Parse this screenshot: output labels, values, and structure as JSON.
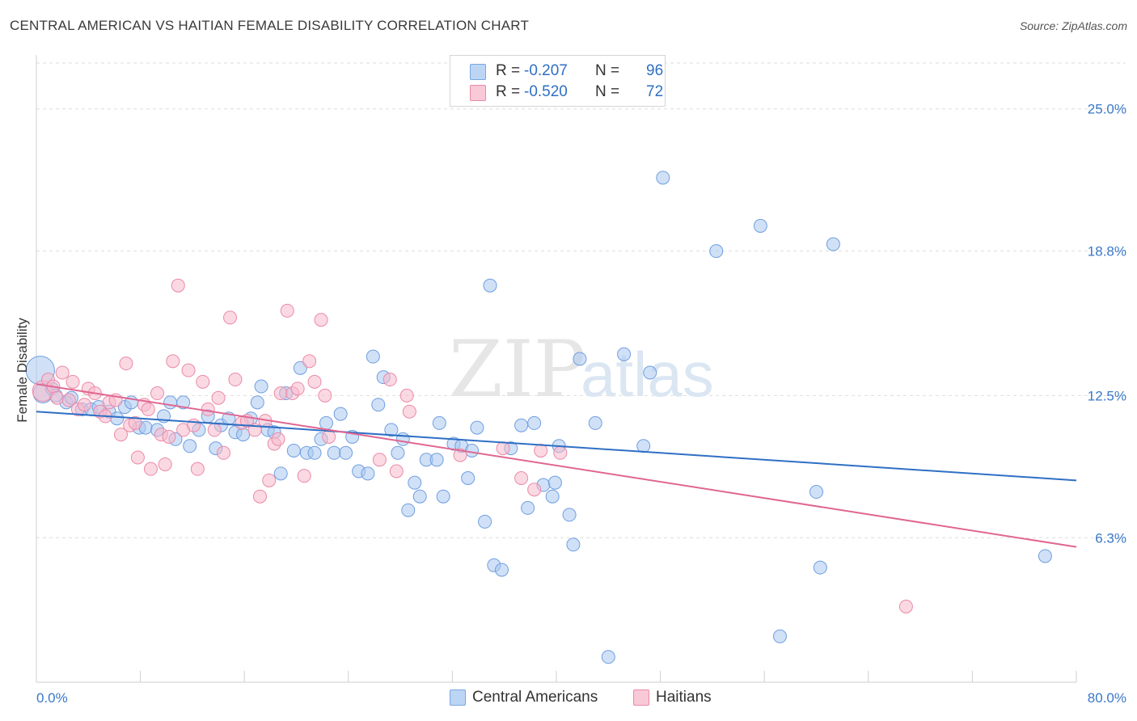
{
  "header": {
    "title": "CENTRAL AMERICAN VS HAITIAN FEMALE DISABILITY CORRELATION CHART",
    "source": "Source: ZipAtlas.com"
  },
  "legend": {
    "r_label": "R =",
    "n_label": "N =",
    "rows": [
      {
        "r": "-0.207",
        "n": "96"
      },
      {
        "r": "-0.520",
        "n": "72"
      }
    ]
  },
  "watermark": {
    "zip": "ZIP",
    "atlas": "atlas"
  },
  "colors": {
    "blue_fill": "#a9c8f0",
    "blue_stroke": "#6f9ee0",
    "blue_line": "#2f6fc4",
    "pink_fill": "#f7b9cc",
    "pink_stroke": "#ea8aa8",
    "pink_line": "#e06691",
    "axis_text": "#3a78c8",
    "grid": "#dddddd"
  },
  "chart_data": {
    "type": "scatter",
    "title": "CENTRAL AMERICAN VS HAITIAN FEMALE DISABILITY CORRELATION CHART",
    "xlabel": "",
    "ylabel": "Female Disability",
    "xlim": [
      0,
      80
    ],
    "ylim": [
      0,
      27
    ],
    "x_ticks": [
      0,
      8,
      16,
      24,
      32,
      40,
      48,
      56,
      64,
      72,
      80
    ],
    "x_tick_labels": [
      "0.0%",
      "80.0%"
    ],
    "y_ticks": [
      6.3,
      12.5,
      18.8,
      25.0
    ],
    "y_tick_labels": [
      "6.3%",
      "12.5%",
      "18.8%",
      "25.0%"
    ],
    "grid": true,
    "legend_position": "bottom",
    "series": [
      {
        "name": "Central Americans",
        "color": "#a9c8f0",
        "trend": [
          [
            0,
            11.8
          ],
          [
            80,
            8.8
          ]
        ],
        "points": [
          [
            0.3,
            13.6,
            2.2
          ],
          [
            0.5,
            12.6,
            1.5
          ],
          [
            1.2,
            12.8,
            1
          ],
          [
            1.5,
            12.5,
            1
          ],
          [
            2.3,
            12.2,
            1
          ],
          [
            2.7,
            12.4,
            1
          ],
          [
            3.5,
            11.9,
            1
          ],
          [
            4.2,
            11.9,
            1
          ],
          [
            4.8,
            12.0,
            1
          ],
          [
            5.6,
            11.8,
            1
          ],
          [
            6.2,
            11.5,
            1
          ],
          [
            6.8,
            12.0,
            1
          ],
          [
            7.3,
            12.2,
            1
          ],
          [
            7.9,
            11.1,
            1
          ],
          [
            8.4,
            11.1,
            1
          ],
          [
            9.3,
            11.0,
            1
          ],
          [
            9.8,
            11.6,
            1
          ],
          [
            10.3,
            12.2,
            1
          ],
          [
            10.7,
            10.6,
            1
          ],
          [
            11.3,
            12.2,
            1
          ],
          [
            11.8,
            10.3,
            1
          ],
          [
            12.5,
            11.0,
            1
          ],
          [
            13.2,
            11.6,
            1
          ],
          [
            13.8,
            10.2,
            1
          ],
          [
            14.2,
            11.2,
            1
          ],
          [
            14.8,
            11.5,
            1
          ],
          [
            15.3,
            10.9,
            1
          ],
          [
            15.9,
            10.8,
            1
          ],
          [
            16.5,
            11.5,
            1
          ],
          [
            17.0,
            12.2,
            1
          ],
          [
            17.3,
            12.9,
            1
          ],
          [
            17.8,
            11.0,
            1
          ],
          [
            18.3,
            10.9,
            1
          ],
          [
            18.8,
            9.1,
            1
          ],
          [
            19.2,
            12.6,
            1
          ],
          [
            19.8,
            10.1,
            1
          ],
          [
            20.3,
            13.7,
            1
          ],
          [
            20.8,
            10.0,
            1
          ],
          [
            21.4,
            10.0,
            1
          ],
          [
            21.9,
            10.6,
            1
          ],
          [
            22.3,
            11.3,
            1
          ],
          [
            22.9,
            10.0,
            1
          ],
          [
            23.4,
            11.7,
            1
          ],
          [
            23.8,
            10.0,
            1
          ],
          [
            24.3,
            10.7,
            1
          ],
          [
            24.8,
            9.2,
            1
          ],
          [
            25.5,
            9.1,
            1
          ],
          [
            25.9,
            14.2,
            1
          ],
          [
            26.3,
            12.1,
            1
          ],
          [
            26.7,
            13.3,
            1
          ],
          [
            27.3,
            11.0,
            1
          ],
          [
            27.8,
            10.0,
            1
          ],
          [
            28.2,
            10.6,
            1
          ],
          [
            28.6,
            7.5,
            1
          ],
          [
            29.1,
            8.7,
            1
          ],
          [
            29.5,
            8.1,
            1
          ],
          [
            30.0,
            9.7,
            1
          ],
          [
            30.8,
            9.7,
            1
          ],
          [
            31.0,
            11.3,
            1
          ],
          [
            31.3,
            8.1,
            1
          ],
          [
            32.1,
            10.4,
            1
          ],
          [
            32.7,
            10.3,
            1
          ],
          [
            33.2,
            8.9,
            1
          ],
          [
            33.5,
            10.1,
            1
          ],
          [
            33.9,
            11.1,
            1
          ],
          [
            34.5,
            7.0,
            1
          ],
          [
            34.9,
            17.3,
            1
          ],
          [
            35.2,
            5.1,
            1
          ],
          [
            35.8,
            4.9,
            1
          ],
          [
            36.5,
            10.2,
            1
          ],
          [
            37.3,
            11.2,
            1
          ],
          [
            37.8,
            7.6,
            1
          ],
          [
            38.3,
            11.3,
            1
          ],
          [
            39.0,
            8.6,
            1
          ],
          [
            39.7,
            8.1,
            1
          ],
          [
            39.9,
            8.7,
            1
          ],
          [
            40.2,
            10.3,
            1
          ],
          [
            41.0,
            7.3,
            1
          ],
          [
            41.3,
            6.0,
            1
          ],
          [
            41.8,
            14.1,
            1
          ],
          [
            43.0,
            11.3,
            1
          ],
          [
            44.0,
            1.1,
            1
          ],
          [
            45.2,
            14.3,
            1
          ],
          [
            46.7,
            10.3,
            1
          ],
          [
            47.2,
            13.5,
            1
          ],
          [
            48.2,
            22.0,
            1
          ],
          [
            52.3,
            18.8,
            1
          ],
          [
            55.7,
            19.9,
            1
          ],
          [
            57.2,
            2.0,
            1
          ],
          [
            60.0,
            8.3,
            1
          ],
          [
            60.3,
            5.0,
            1
          ],
          [
            61.3,
            19.1,
            1
          ],
          [
            77.6,
            5.5,
            1
          ]
        ]
      },
      {
        "name": "Haitians",
        "color": "#f7b9cc",
        "trend": [
          [
            0,
            13.0
          ],
          [
            80,
            5.9
          ]
        ],
        "points": [
          [
            0.5,
            12.7,
            1.6
          ],
          [
            0.9,
            13.2,
            1
          ],
          [
            1.3,
            12.9,
            1
          ],
          [
            1.6,
            12.4,
            1
          ],
          [
            2.0,
            13.5,
            1
          ],
          [
            2.5,
            12.3,
            1
          ],
          [
            2.8,
            13.1,
            1
          ],
          [
            3.2,
            11.9,
            1
          ],
          [
            3.7,
            12.1,
            1
          ],
          [
            4.0,
            12.8,
            1
          ],
          [
            4.5,
            12.6,
            1
          ],
          [
            4.9,
            11.8,
            1
          ],
          [
            5.3,
            11.6,
            1
          ],
          [
            5.6,
            12.2,
            1
          ],
          [
            6.1,
            12.3,
            1
          ],
          [
            6.5,
            10.8,
            1
          ],
          [
            6.9,
            13.9,
            1
          ],
          [
            7.2,
            11.2,
            1
          ],
          [
            7.6,
            11.3,
            1
          ],
          [
            7.8,
            9.8,
            1
          ],
          [
            8.3,
            12.1,
            1
          ],
          [
            8.6,
            11.9,
            1
          ],
          [
            8.8,
            9.3,
            1
          ],
          [
            9.3,
            12.6,
            1
          ],
          [
            9.6,
            10.8,
            1
          ],
          [
            9.9,
            9.5,
            1
          ],
          [
            10.2,
            10.7,
            1
          ],
          [
            10.5,
            14.0,
            1
          ],
          [
            10.9,
            17.3,
            1
          ],
          [
            11.3,
            11.0,
            1
          ],
          [
            11.7,
            13.6,
            1
          ],
          [
            12.1,
            11.2,
            1
          ],
          [
            12.4,
            9.3,
            1
          ],
          [
            12.8,
            13.1,
            1
          ],
          [
            13.2,
            11.9,
            1
          ],
          [
            13.7,
            11.0,
            1
          ],
          [
            14.0,
            12.4,
            1
          ],
          [
            14.4,
            10.0,
            1
          ],
          [
            14.9,
            15.9,
            1
          ],
          [
            15.3,
            13.2,
            1
          ],
          [
            15.8,
            11.3,
            1
          ],
          [
            16.2,
            11.4,
            1
          ],
          [
            16.8,
            11.0,
            1
          ],
          [
            17.2,
            8.1,
            1
          ],
          [
            17.6,
            11.4,
            1
          ],
          [
            17.9,
            8.8,
            1
          ],
          [
            18.3,
            10.4,
            1
          ],
          [
            18.6,
            10.6,
            1
          ],
          [
            18.8,
            12.6,
            1
          ],
          [
            19.3,
            16.2,
            1
          ],
          [
            19.7,
            12.6,
            1
          ],
          [
            20.1,
            12.8,
            1
          ],
          [
            20.6,
            9.0,
            1
          ],
          [
            21.0,
            14.0,
            1
          ],
          [
            21.4,
            13.1,
            1
          ],
          [
            21.9,
            15.8,
            1
          ],
          [
            22.2,
            12.5,
            1
          ],
          [
            22.5,
            10.7,
            1
          ],
          [
            26.4,
            9.7,
            1
          ],
          [
            27.2,
            13.2,
            1
          ],
          [
            27.7,
            9.2,
            1
          ],
          [
            28.5,
            12.5,
            1
          ],
          [
            28.7,
            11.8,
            1
          ],
          [
            32.6,
            9.9,
            1
          ],
          [
            35.9,
            10.2,
            1
          ],
          [
            37.3,
            8.9,
            1
          ],
          [
            38.3,
            8.4,
            1
          ],
          [
            38.8,
            10.1,
            1
          ],
          [
            40.3,
            10.0,
            1
          ],
          [
            66.9,
            3.3,
            1
          ]
        ]
      }
    ]
  }
}
